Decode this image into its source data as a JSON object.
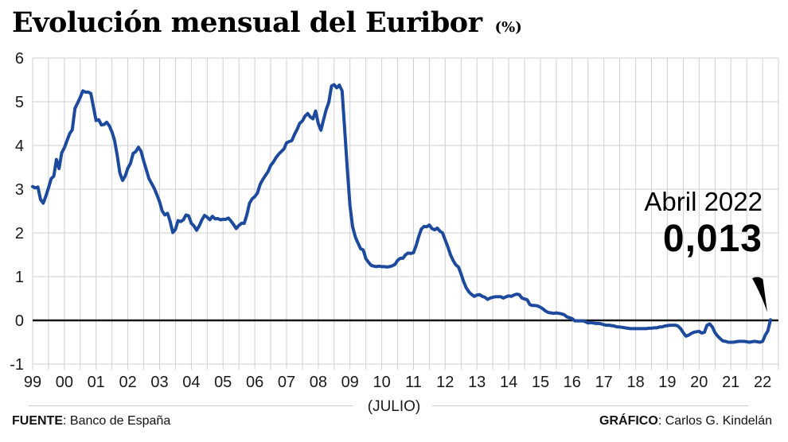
{
  "header": {
    "title": "Evolución mensual del Euribor",
    "unit": "(%)"
  },
  "annotation": {
    "label": "Abril 2022",
    "value": "0,013"
  },
  "x_caption": "(JULIO)",
  "footer": {
    "source_label": "FUENTE",
    "source_text": ": Banco de España",
    "credit_label": "GRÁFICO",
    "credit_text": ": Carlos G. Kindelán"
  },
  "colors": {
    "line": "#1d4a9c",
    "grid": "#cfcfcf",
    "zero_line": "#151515",
    "tick_text": "#1a1a1a",
    "pointer": "#000000"
  },
  "chart_data": {
    "type": "line",
    "title": "Evolución mensual del Euribor (%)",
    "x_start": "1999-01",
    "x_end": "2022-04",
    "x_tick_labels": [
      "99",
      "00",
      "01",
      "02",
      "03",
      "04",
      "05",
      "06",
      "07",
      "08",
      "09",
      "10",
      "11",
      "12",
      "13",
      "14",
      "15",
      "16",
      "17",
      "18",
      "19",
      "20",
      "21",
      "22"
    ],
    "x_axis_note": "(JULIO)",
    "y_ticks": [
      "6",
      "5",
      "4",
      "3",
      "2",
      "1",
      "0",
      "-1"
    ],
    "ylim": [
      -1,
      6
    ],
    "grid": true,
    "legend": false,
    "series": [
      {
        "name": "Euribor mensual",
        "values": [
          3.06,
          3.03,
          3.05,
          2.76,
          2.68,
          2.84,
          3.03,
          3.24,
          3.3,
          3.68,
          3.47,
          3.83,
          3.95,
          4.11,
          4.27,
          4.36,
          4.85,
          4.97,
          5.1,
          5.25,
          5.22,
          5.22,
          5.19,
          4.88,
          4.57,
          4.59,
          4.47,
          4.48,
          4.53,
          4.45,
          4.31,
          4.11,
          3.77,
          3.37,
          3.2,
          3.3,
          3.48,
          3.59,
          3.82,
          3.86,
          3.96,
          3.87,
          3.64,
          3.44,
          3.24,
          3.13,
          3.02,
          2.87,
          2.71,
          2.5,
          2.41,
          2.45,
          2.26,
          2.01,
          2.08,
          2.28,
          2.26,
          2.3,
          2.41,
          2.39,
          2.22,
          2.16,
          2.06,
          2.16,
          2.3,
          2.4,
          2.36,
          2.3,
          2.38,
          2.32,
          2.33,
          2.3,
          2.31,
          2.31,
          2.34,
          2.27,
          2.19,
          2.1,
          2.17,
          2.22,
          2.22,
          2.41,
          2.68,
          2.78,
          2.83,
          2.91,
          3.11,
          3.22,
          3.31,
          3.4,
          3.54,
          3.62,
          3.72,
          3.8,
          3.86,
          3.92,
          4.06,
          4.09,
          4.11,
          4.25,
          4.37,
          4.51,
          4.56,
          4.67,
          4.73,
          4.65,
          4.61,
          4.79,
          4.5,
          4.35,
          4.59,
          4.82,
          4.99,
          5.36,
          5.39,
          5.32,
          5.38,
          5.25,
          4.35,
          3.45,
          2.62,
          2.14,
          1.91,
          1.77,
          1.64,
          1.61,
          1.41,
          1.33,
          1.26,
          1.24,
          1.23,
          1.24,
          1.23,
          1.23,
          1.22,
          1.23,
          1.25,
          1.28,
          1.37,
          1.42,
          1.42,
          1.5,
          1.54,
          1.53,
          1.55,
          1.71,
          1.92,
          2.09,
          2.15,
          2.14,
          2.18,
          2.1,
          2.07,
          2.11,
          2.04,
          2.0,
          1.84,
          1.68,
          1.5,
          1.37,
          1.27,
          1.22,
          1.06,
          0.88,
          0.74,
          0.65,
          0.59,
          0.55,
          0.58,
          0.59,
          0.55,
          0.53,
          0.48,
          0.51,
          0.53,
          0.54,
          0.54,
          0.54,
          0.51,
          0.54,
          0.56,
          0.55,
          0.58,
          0.6,
          0.59,
          0.51,
          0.49,
          0.47,
          0.36,
          0.34,
          0.34,
          0.33,
          0.3,
          0.26,
          0.21,
          0.18,
          0.17,
          0.16,
          0.17,
          0.16,
          0.15,
          0.13,
          0.08,
          0.06,
          0.04,
          -0.01,
          -0.01,
          -0.01,
          -0.01,
          -0.03,
          -0.06,
          -0.05,
          -0.06,
          -0.07,
          -0.07,
          -0.08,
          -0.1,
          -0.11,
          -0.11,
          -0.12,
          -0.13,
          -0.15,
          -0.15,
          -0.16,
          -0.17,
          -0.18,
          -0.19,
          -0.19,
          -0.19,
          -0.19,
          -0.19,
          -0.19,
          -0.19,
          -0.18,
          -0.18,
          -0.17,
          -0.17,
          -0.15,
          -0.15,
          -0.13,
          -0.12,
          -0.11,
          -0.11,
          -0.11,
          -0.13,
          -0.19,
          -0.28,
          -0.36,
          -0.34,
          -0.3,
          -0.27,
          -0.26,
          -0.25,
          -0.29,
          -0.27,
          -0.11,
          -0.08,
          -0.15,
          -0.28,
          -0.36,
          -0.42,
          -0.47,
          -0.48,
          -0.5,
          -0.5,
          -0.5,
          -0.49,
          -0.48,
          -0.48,
          -0.48,
          -0.49,
          -0.5,
          -0.49,
          -0.48,
          -0.49,
          -0.5,
          -0.48,
          -0.34,
          -0.24,
          0.013
        ]
      }
    ],
    "annotation": {
      "label": "Abril 2022",
      "value": 0.013,
      "value_text": "0,013"
    }
  }
}
